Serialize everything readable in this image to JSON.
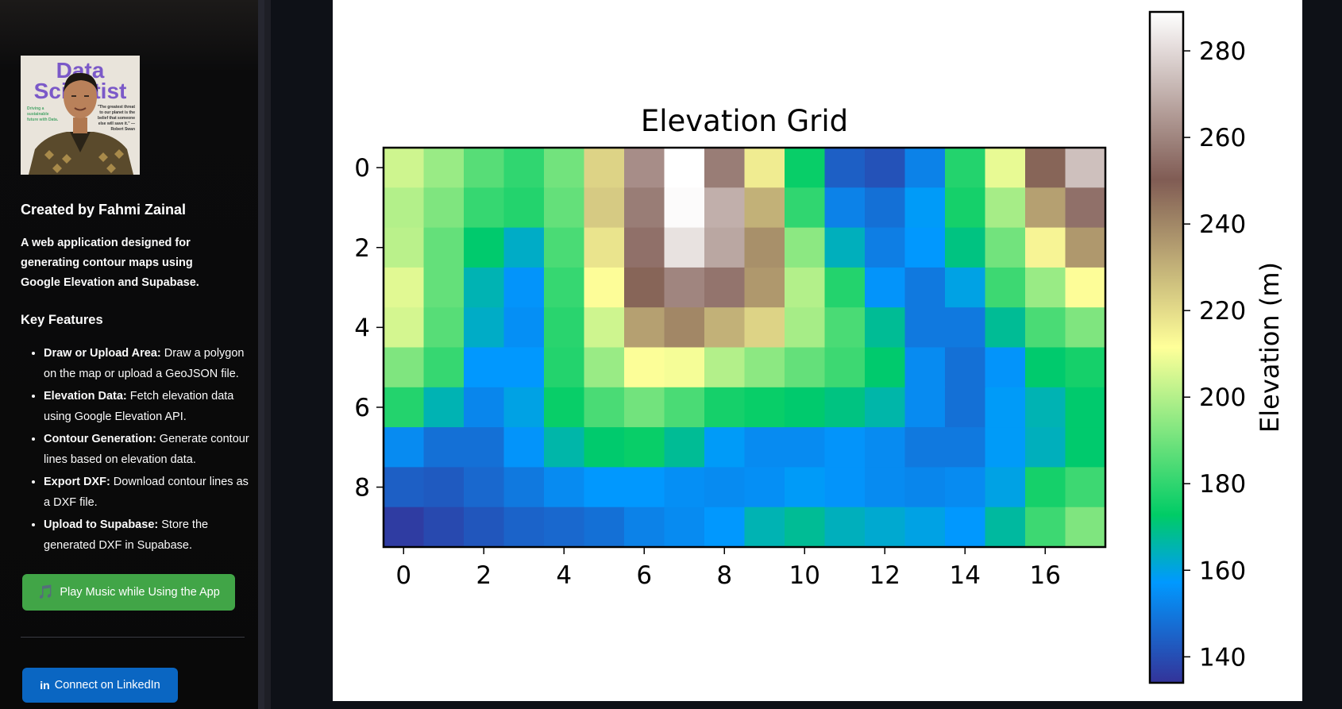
{
  "sidebar": {
    "avatar": {
      "cover_title_line1": "Data",
      "cover_title_line2": "Scientist",
      "cover_side_text": "Driving a sustainable future with Data.",
      "cover_quote": "\"The greatest threat to our planet is the belief that someone else will save it.\" — Robert Swan"
    },
    "creator": "Created by Fahmi Zainal",
    "intro": "A web application designed for generating contour maps using Google Elevation and Supabase.",
    "features_heading": "Key Features",
    "features": [
      {
        "title": "Draw or Upload Area:",
        "text": " Draw a polygon on the map or upload a GeoJSON file."
      },
      {
        "title": "Elevation Data:",
        "text": " Fetch elevation data using Google Elevation API."
      },
      {
        "title": "Contour Generation:",
        "text": " Generate contour lines based on elevation data."
      },
      {
        "title": "Export DXF:",
        "text": " Download contour lines as a DXF file."
      },
      {
        "title": "Upload to Supabase:",
        "text": " Store the generated DXF in Supabase."
      }
    ],
    "music_button": {
      "icon": "🎵",
      "label": "Play Music while Using the App",
      "color": "#41a547"
    },
    "linkedin_button": {
      "icon": "in",
      "label": "Connect on LinkedIn",
      "color": "#0a66c2"
    }
  },
  "chart_data": {
    "type": "heatmap",
    "title": "Elevation Grid",
    "colormap": "terrain",
    "colorbar_label": "Elevation (m)",
    "vmin": 134,
    "vmax": 289,
    "colorbar_ticks": [
      140,
      160,
      180,
      200,
      220,
      240,
      260,
      280
    ],
    "x_ticks": [
      0,
      2,
      4,
      6,
      8,
      10,
      12,
      14,
      16
    ],
    "y_ticks": [
      0,
      2,
      4,
      6,
      8
    ],
    "n_cols": 18,
    "n_rows": 10,
    "values": [
      [
        204,
        196,
        186,
        180,
        190,
        222,
        262,
        289,
        258,
        216,
        174,
        144,
        141,
        152,
        178,
        208,
        248,
        274
      ],
      [
        200,
        192,
        181,
        178,
        188,
        224,
        258,
        288,
        270,
        230,
        180,
        152,
        148,
        158,
        176,
        198,
        234,
        255
      ],
      [
        201,
        188,
        172,
        163,
        184,
        218,
        255,
        282,
        268,
        238,
        194,
        164,
        151,
        157,
        170,
        190,
        214,
        236
      ],
      [
        207,
        188,
        165,
        156,
        181,
        212,
        248,
        260,
        256,
        236,
        200,
        178,
        156,
        150,
        160,
        182,
        196,
        212
      ],
      [
        205,
        186,
        163,
        155,
        179,
        204,
        234,
        240,
        230,
        222,
        198,
        184,
        168,
        150,
        150,
        168,
        184,
        192
      ],
      [
        192,
        181,
        157,
        157,
        178,
        196,
        211,
        210,
        200,
        194,
        188,
        182,
        172,
        154,
        148,
        156,
        172,
        176
      ],
      [
        178,
        165,
        153,
        160,
        174,
        184,
        190,
        184,
        176,
        174,
        172,
        170,
        166,
        154,
        148,
        158,
        165,
        172
      ],
      [
        154,
        148,
        148,
        156,
        166,
        172,
        174,
        168,
        158,
        154,
        154,
        156,
        154,
        150,
        150,
        158,
        164,
        172
      ],
      [
        144,
        143,
        146,
        150,
        154,
        157,
        157,
        155,
        154,
        155,
        158,
        156,
        154,
        153,
        154,
        160,
        176,
        182
      ],
      [
        136,
        139,
        142,
        145,
        146,
        148,
        152,
        154,
        157,
        165,
        168,
        164,
        162,
        160,
        157,
        167,
        182,
        192
      ]
    ]
  }
}
